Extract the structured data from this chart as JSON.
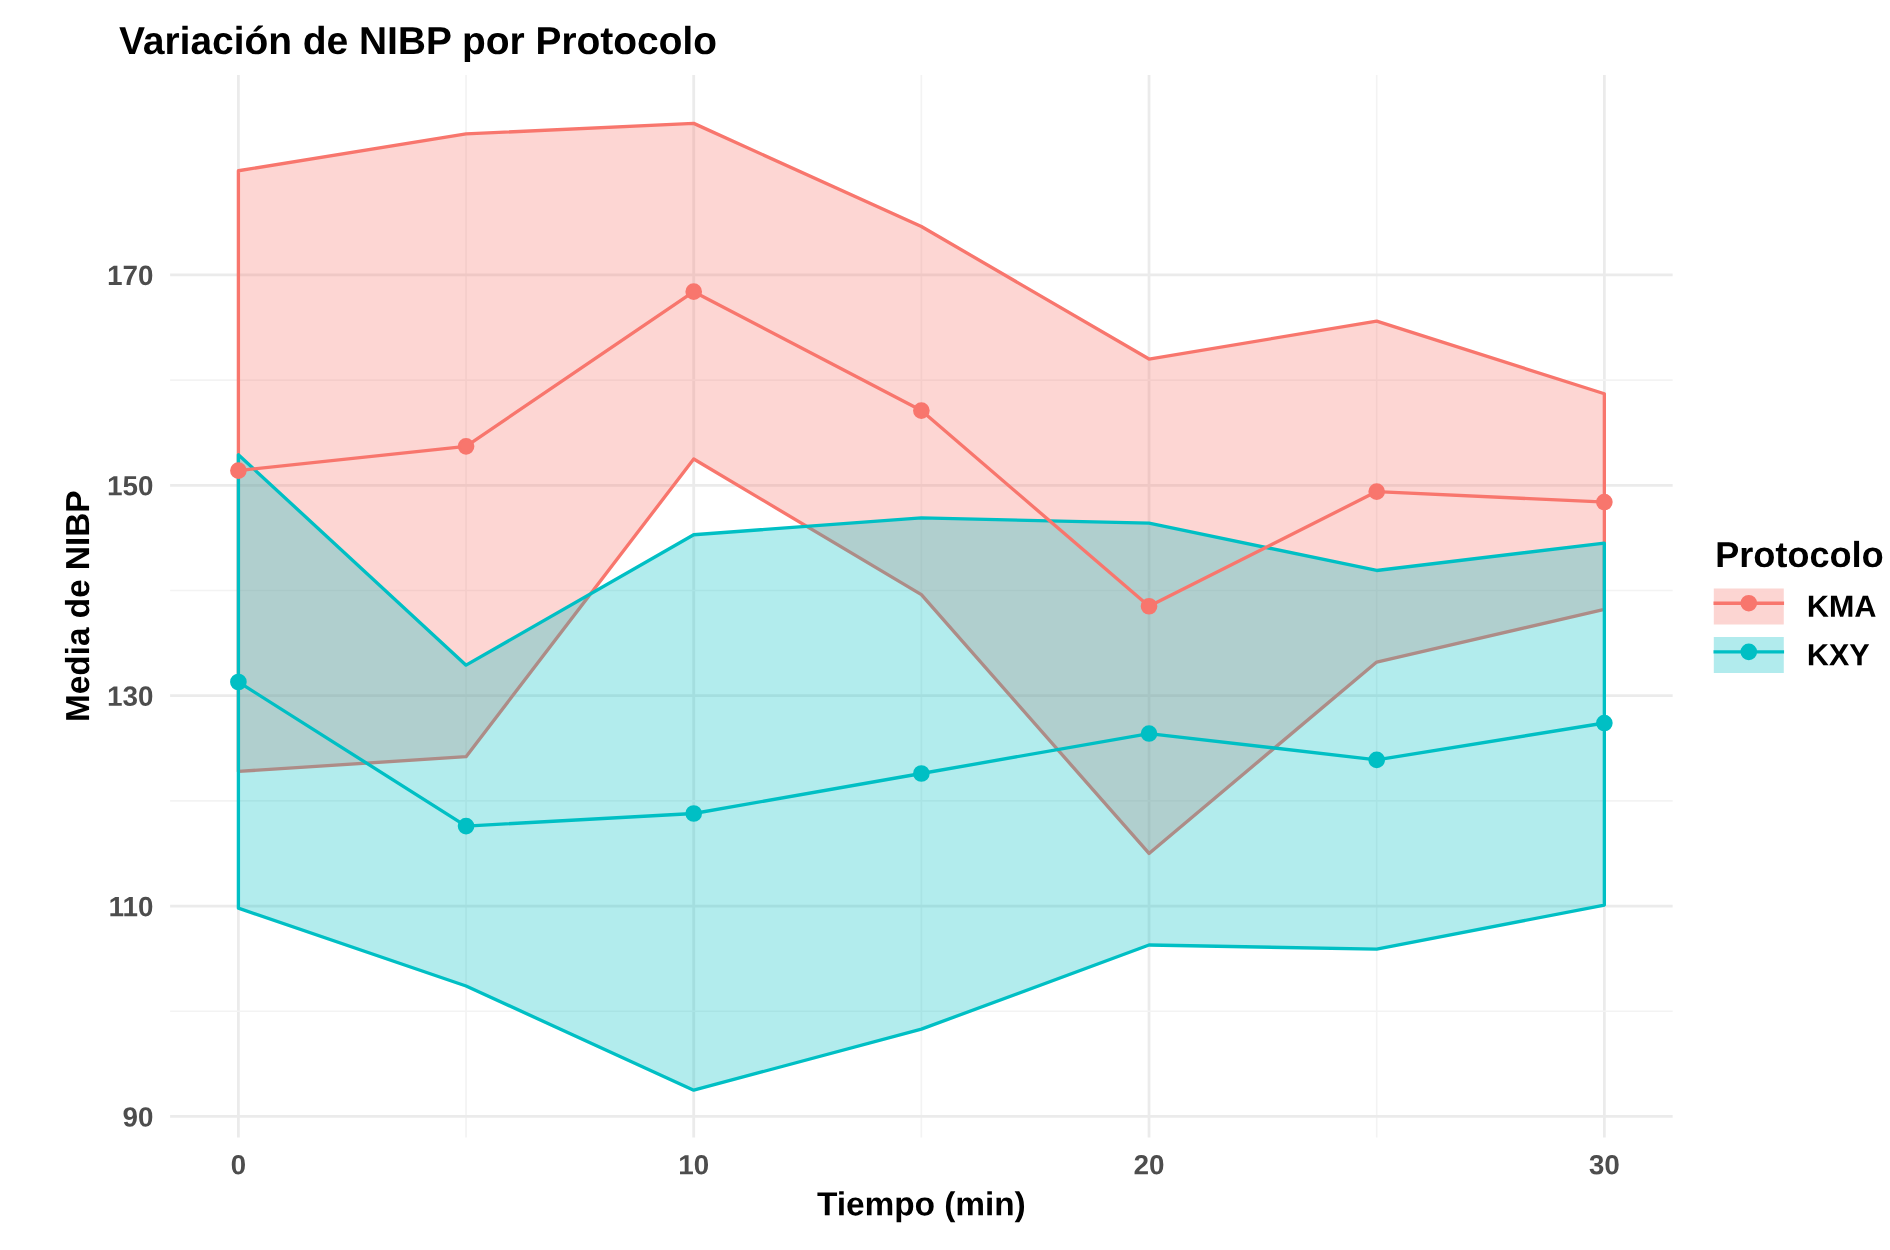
{
  "chart_data": {
    "type": "line",
    "title": "Variación de NIBP por Protocolo",
    "xlabel": "Tiempo (min)",
    "ylabel": "Media de NIBP",
    "legend_title": "Protocolo",
    "x": [
      0,
      5,
      10,
      15,
      20,
      25,
      30
    ],
    "series": [
      {
        "name": "KMA",
        "color": "#f8766d",
        "values": [
          151.4,
          153.7,
          168.4,
          157.1,
          138.5,
          149.4,
          148.4
        ],
        "lower": [
          122.8,
          124.2,
          152.5,
          139.6,
          115.0,
          133.2,
          138.2
        ],
        "upper": [
          179.9,
          183.4,
          184.4,
          174.6,
          162.0,
          165.6,
          158.7
        ]
      },
      {
        "name": "KXY",
        "color": "#00bfc4",
        "values": [
          131.3,
          117.6,
          118.8,
          122.6,
          126.4,
          123.9,
          127.4
        ],
        "lower": [
          109.8,
          102.4,
          92.5,
          98.3,
          106.3,
          105.9,
          110.1
        ],
        "upper": [
          152.9,
          132.9,
          145.3,
          146.9,
          146.4,
          141.9,
          144.5
        ]
      }
    ],
    "xlim": [
      -1.5,
      31.5
    ],
    "ylim": [
      88,
      189
    ],
    "xticks": [
      0,
      10,
      20,
      30
    ],
    "yticks": [
      90,
      110,
      130,
      150,
      170
    ],
    "grid": true,
    "legend": "right",
    "marker": "circle",
    "line_style": "solid"
  }
}
